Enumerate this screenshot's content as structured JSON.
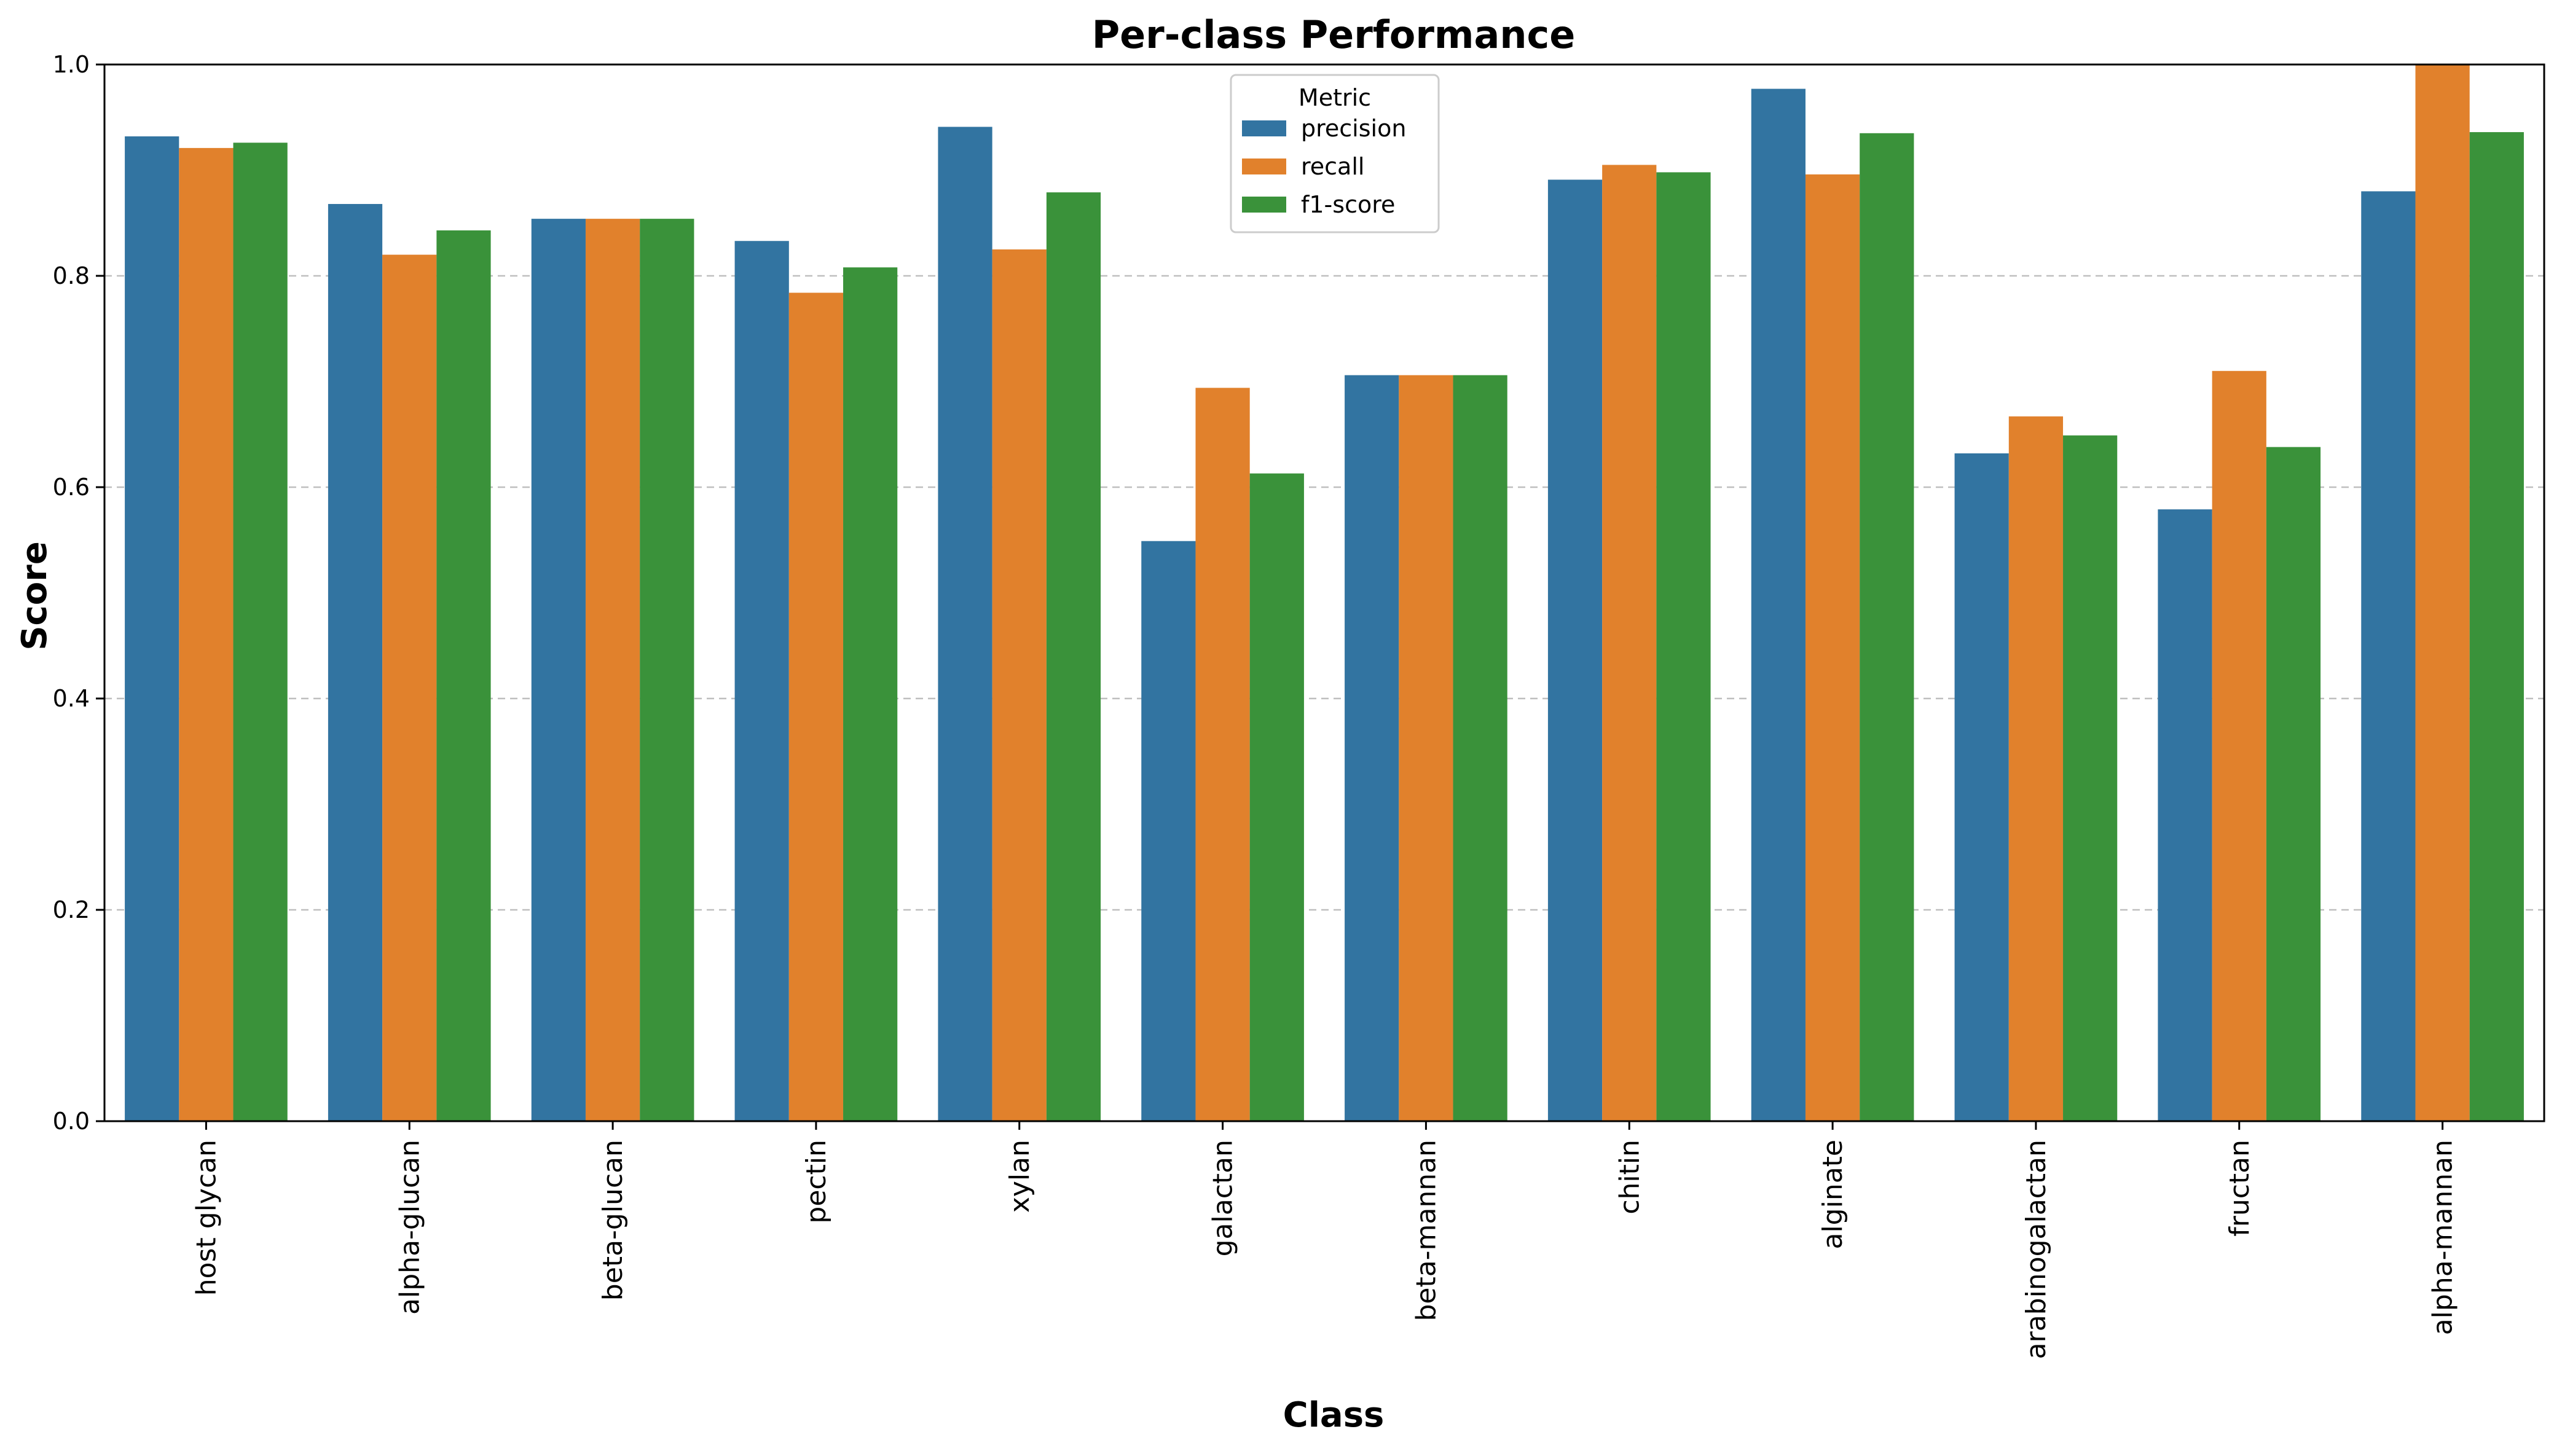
{
  "chart_data": {
    "type": "bar",
    "title": "Per-class Performance",
    "xlabel": "Class",
    "ylabel": "Score",
    "ylim": [
      0,
      1.0
    ],
    "yticks": [
      "0.0",
      "0.2",
      "0.4",
      "0.6",
      "0.8",
      "1.0"
    ],
    "grid": "y-dashed",
    "legend": {
      "title": "Metric",
      "placement": "top-center"
    },
    "categories": [
      "host glycan",
      "alpha-glucan",
      "beta-glucan",
      "pectin",
      "xylan",
      "galactan",
      "beta-mannan",
      "chitin",
      "alginate",
      "arabinogalactan",
      "fructan",
      "alpha-mannan"
    ],
    "series": [
      {
        "name": "precision",
        "color": "#3274a1",
        "values": [
          0.932,
          0.868,
          0.854,
          0.833,
          0.941,
          0.549,
          0.706,
          0.891,
          0.977,
          0.632,
          0.579,
          0.88
        ]
      },
      {
        "name": "recall",
        "color": "#e1812c",
        "values": [
          0.921,
          0.82,
          0.854,
          0.784,
          0.825,
          0.694,
          0.706,
          0.905,
          0.896,
          0.667,
          0.71,
          1.0
        ]
      },
      {
        "name": "f1-score",
        "color": "#3a923a",
        "values": [
          0.926,
          0.843,
          0.854,
          0.808,
          0.879,
          0.613,
          0.706,
          0.898,
          0.935,
          0.649,
          0.638,
          0.936
        ]
      }
    ]
  }
}
